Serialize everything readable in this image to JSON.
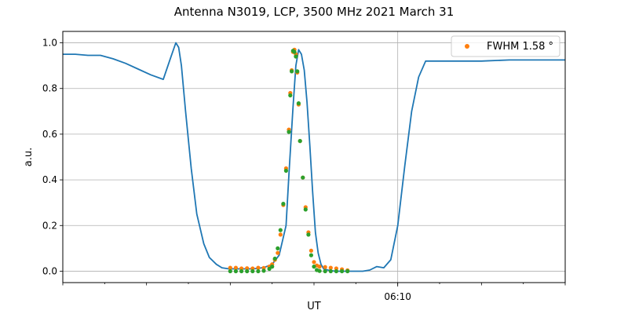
{
  "chart_data": {
    "type": "scatter",
    "title": "Antenna N3019, LCP, 3500 MHz 2021 March 31",
    "xlabel": "UT",
    "ylabel": "a.u.",
    "xlim": [
      "06:06",
      "06:12"
    ],
    "ylim": [
      -0.05,
      1.05
    ],
    "x_tick_labels": [
      {
        "x": "06:10",
        "label": "06:10"
      }
    ],
    "y_ticks": [
      0.0,
      0.2,
      0.4,
      0.6,
      0.8,
      1.0
    ],
    "y_tick_labels": [
      "0.0",
      "0.2",
      "0.4",
      "0.6",
      "0.8",
      "1.0"
    ],
    "grid": true,
    "legend_position": "top-right",
    "line_series": {
      "color": "#1f77b4",
      "x": [
        "06:06:00",
        "06:06:09",
        "06:06:18",
        "06:06:27",
        "06:06:36",
        "06:06:45",
        "06:06:54",
        "06:07:03",
        "06:07:12",
        "06:07:17",
        "06:07:21",
        "06:07:23",
        "06:07:25",
        "06:07:28",
        "06:07:32",
        "06:07:36",
        "06:07:41",
        "06:07:45",
        "06:07:50",
        "06:07:54",
        "06:07:59",
        "06:08:04",
        "06:08:10",
        "06:08:15",
        "06:08:20",
        "06:08:25",
        "06:08:30",
        "06:08:35",
        "06:08:40",
        "06:08:42",
        "06:08:45",
        "06:08:47",
        "06:08:49",
        "06:08:51",
        "06:08:53",
        "06:08:55",
        "06:08:57",
        "06:08:59",
        "06:09:01",
        "06:09:03",
        "06:09:05",
        "06:09:07",
        "06:09:10",
        "06:09:15",
        "06:09:20",
        "06:09:25",
        "06:09:30",
        "06:09:35",
        "06:09:40",
        "06:09:45",
        "06:09:50",
        "06:09:55",
        "06:10:00",
        "06:10:05",
        "06:10:10",
        "06:10:15",
        "06:10:20",
        "06:10:40",
        "06:11:00",
        "06:11:20",
        "06:11:40",
        "06:12:00"
      ],
      "y": [
        0.95,
        0.95,
        0.945,
        0.945,
        0.93,
        0.91,
        0.885,
        0.86,
        0.84,
        0.93,
        1.0,
        0.98,
        0.9,
        0.7,
        0.45,
        0.25,
        0.12,
        0.06,
        0.03,
        0.015,
        0.01,
        0.01,
        0.01,
        0.01,
        0.012,
        0.018,
        0.03,
        0.07,
        0.2,
        0.42,
        0.72,
        0.9,
        0.97,
        0.95,
        0.88,
        0.74,
        0.55,
        0.35,
        0.17,
        0.08,
        0.03,
        0.01,
        0.005,
        0.0,
        0.0,
        0.0,
        0.0,
        0.0,
        0.005,
        0.02,
        0.015,
        0.05,
        0.2,
        0.46,
        0.7,
        0.85,
        0.92,
        0.92,
        0.92,
        0.925,
        0.925,
        0.925
      ]
    },
    "scatter_series": [
      {
        "name": "FWHM 1.58 °",
        "color": "#ff7f0e",
        "x": [
          "06:08:00",
          "06:08:04",
          "06:08:08",
          "06:08:12",
          "06:08:16",
          "06:08:20",
          "06:08:24",
          "06:08:28",
          "06:08:30",
          "06:08:32",
          "06:08:34",
          "06:08:36",
          "06:08:38",
          "06:08:40",
          "06:08:42",
          "06:08:43",
          "06:08:44",
          "06:08:45",
          "06:08:46",
          "06:08:47",
          "06:08:48",
          "06:08:49",
          "06:08:50",
          "06:08:52",
          "06:08:54",
          "06:08:56",
          "06:08:58",
          "06:09:00",
          "06:09:02",
          "06:09:04",
          "06:09:08",
          "06:09:12",
          "06:09:16",
          "06:09:20",
          "06:09:24"
        ],
        "y": [
          0.015,
          0.015,
          0.012,
          0.013,
          0.012,
          0.015,
          0.014,
          0.02,
          0.03,
          0.05,
          0.08,
          0.16,
          0.29,
          0.45,
          0.62,
          0.78,
          0.88,
          0.96,
          0.97,
          0.95,
          0.87,
          0.73,
          0.57,
          0.41,
          0.28,
          0.17,
          0.09,
          0.04,
          0.025,
          0.02,
          0.018,
          0.015,
          0.012,
          0.008,
          0.004
        ]
      },
      {
        "color": "#2ca02c",
        "x": [
          "06:08:00",
          "06:08:04",
          "06:08:08",
          "06:08:12",
          "06:08:16",
          "06:08:20",
          "06:08:24",
          "06:08:28",
          "06:08:30",
          "06:08:32",
          "06:08:34",
          "06:08:36",
          "06:08:38",
          "06:08:40",
          "06:08:42",
          "06:08:43",
          "06:08:44",
          "06:08:45",
          "06:08:46",
          "06:08:47",
          "06:08:48",
          "06:08:49",
          "06:08:50",
          "06:08:52",
          "06:08:54",
          "06:08:56",
          "06:08:58",
          "06:09:00",
          "06:09:02",
          "06:09:04",
          "06:09:08",
          "06:09:12",
          "06:09:16",
          "06:09:20",
          "06:09:24"
        ],
        "y": [
          0.0,
          0.0,
          0.0,
          0.0,
          0.0,
          0.0,
          0.002,
          0.01,
          0.02,
          0.055,
          0.1,
          0.18,
          0.295,
          0.44,
          0.61,
          0.77,
          0.875,
          0.965,
          0.96,
          0.94,
          0.875,
          0.735,
          0.57,
          0.41,
          0.27,
          0.16,
          0.07,
          0.02,
          0.005,
          0.001,
          0.0,
          0.0,
          0.0,
          0.0,
          0.0
        ]
      }
    ]
  }
}
